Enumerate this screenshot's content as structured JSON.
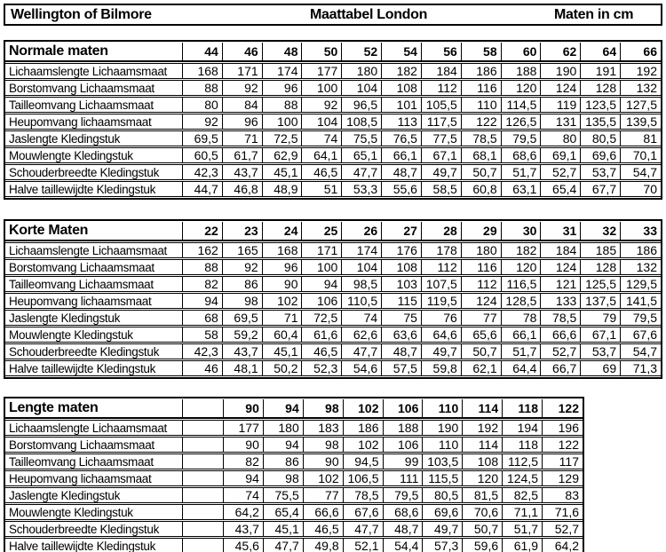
{
  "title_bar": {
    "left": "Wellington of Bilmore",
    "center": "Maattabel London",
    "right": "Maten in cm"
  },
  "colors": {
    "border": "#000000",
    "text": "#000000",
    "background": "#ffffff"
  },
  "tables": [
    {
      "title": "Normale maten",
      "lead_empty": false,
      "sizes": [
        "44",
        "46",
        "48",
        "50",
        "52",
        "54",
        "56",
        "58",
        "60",
        "62",
        "64",
        "66"
      ],
      "rows": [
        {
          "label": "Lichaamslengte Lichaamsmaat",
          "values": [
            "168",
            "171",
            "174",
            "177",
            "180",
            "182",
            "184",
            "186",
            "188",
            "190",
            "191",
            "192"
          ]
        },
        {
          "label": "Borstomvang Lichaamsmaat",
          "values": [
            "88",
            "92",
            "96",
            "100",
            "104",
            "108",
            "112",
            "116",
            "120",
            "124",
            "128",
            "132"
          ]
        },
        {
          "label": "Tailleomvang Lichaamsmaat",
          "values": [
            "80",
            "84",
            "88",
            "92",
            "96,5",
            "101",
            "105,5",
            "110",
            "114,5",
            "119",
            "123,5",
            "127,5"
          ]
        },
        {
          "label": "Heupomvang lichaamsmaat",
          "values": [
            "92",
            "96",
            "100",
            "104",
            "108,5",
            "113",
            "117,5",
            "122",
            "126,5",
            "131",
            "135,5",
            "139,5"
          ]
        },
        {
          "label": "Jaslengte Kledingstuk",
          "values": [
            "69,5",
            "71",
            "72,5",
            "74",
            "75,5",
            "76,5",
            "77,5",
            "78,5",
            "79,5",
            "80",
            "80,5",
            "81"
          ]
        },
        {
          "label": "Mouwlengte Kledingstuk",
          "values": [
            "60,5",
            "61,7",
            "62,9",
            "64,1",
            "65,1",
            "66,1",
            "67,1",
            "68,1",
            "68,6",
            "69,1",
            "69,6",
            "70,1"
          ]
        },
        {
          "label": "Schouderbreedte Kledingstuk",
          "values": [
            "42,3",
            "43,7",
            "45,1",
            "46,5",
            "47,7",
            "48,7",
            "49,7",
            "50,7",
            "51,7",
            "52,7",
            "53,7",
            "54,7"
          ]
        },
        {
          "label": "Halve taillewijdte Kledingstuk",
          "values": [
            "44,7",
            "46,8",
            "48,9",
            "51",
            "53,3",
            "55,6",
            "58,5",
            "60,8",
            "63,1",
            "65,4",
            "67,7",
            "70"
          ]
        }
      ]
    },
    {
      "title": "Korte Maten",
      "lead_empty": false,
      "sizes": [
        "22",
        "23",
        "24",
        "25",
        "26",
        "27",
        "28",
        "29",
        "30",
        "31",
        "32",
        "33"
      ],
      "rows": [
        {
          "label": "Lichaamslengte Lichaamsmaat",
          "values": [
            "162",
            "165",
            "168",
            "171",
            "174",
            "176",
            "178",
            "180",
            "182",
            "184",
            "185",
            "186"
          ]
        },
        {
          "label": "Borstomvang Lichaamsmaat",
          "values": [
            "88",
            "92",
            "96",
            "100",
            "104",
            "108",
            "112",
            "116",
            "120",
            "124",
            "128",
            "132"
          ]
        },
        {
          "label": "Tailleomvang Lichaamsmaat",
          "values": [
            "82",
            "86",
            "90",
            "94",
            "98,5",
            "103",
            "107,5",
            "112",
            "116,5",
            "121",
            "125,5",
            "129,5"
          ]
        },
        {
          "label": "Heupomvang lichaamsmaat",
          "values": [
            "94",
            "98",
            "102",
            "106",
            "110,5",
            "115",
            "119,5",
            "124",
            "128,5",
            "133",
            "137,5",
            "141,5"
          ]
        },
        {
          "label": "Jaslengte Kledingstuk",
          "values": [
            "68",
            "69,5",
            "71",
            "72,5",
            "74",
            "75",
            "76",
            "77",
            "78",
            "78,5",
            "79",
            "79,5"
          ]
        },
        {
          "label": "Mouwlengte Kledingstuk",
          "values": [
            "58",
            "59,2",
            "60,4",
            "61,6",
            "62,6",
            "63,6",
            "64,6",
            "65,6",
            "66,1",
            "66,6",
            "67,1",
            "67,6"
          ]
        },
        {
          "label": "Schouderbreedte Kledingstuk",
          "values": [
            "42,3",
            "43,7",
            "45,1",
            "46,5",
            "47,7",
            "48,7",
            "49,7",
            "50,7",
            "51,7",
            "52,7",
            "53,7",
            "54,7"
          ]
        },
        {
          "label": "Halve taillewijdte Kledingstuk",
          "values": [
            "46",
            "48,1",
            "50,2",
            "52,3",
            "54,6",
            "57,5",
            "59,8",
            "62,1",
            "64,4",
            "66,7",
            "69",
            "71,3"
          ]
        }
      ]
    },
    {
      "title": "Lengte maten",
      "lead_empty": true,
      "sizes": [
        "90",
        "94",
        "98",
        "102",
        "106",
        "110",
        "114",
        "118",
        "122"
      ],
      "rows": [
        {
          "label": "Lichaamslengte Lichaamsmaat",
          "values": [
            "177",
            "180",
            "183",
            "186",
            "188",
            "190",
            "192",
            "194",
            "196"
          ]
        },
        {
          "label": "Borstomvang Lichaamsmaat",
          "values": [
            "90",
            "94",
            "98",
            "102",
            "106",
            "110",
            "114",
            "118",
            "122"
          ]
        },
        {
          "label": "Tailleomvang Lichaamsmaat",
          "values": [
            "82",
            "86",
            "90",
            "94,5",
            "99",
            "103,5",
            "108",
            "112,5",
            "117"
          ]
        },
        {
          "label": "Heupomvang lichaamsmaat",
          "values": [
            "94",
            "98",
            "102",
            "106,5",
            "111",
            "115,5",
            "120",
            "124,5",
            "129"
          ]
        },
        {
          "label": "Jaslengte Kledingstuk",
          "values": [
            "74",
            "75,5",
            "77",
            "78,5",
            "79,5",
            "80,5",
            "81,5",
            "82,5",
            "83"
          ]
        },
        {
          "label": "Mouwlengte Kledingstuk",
          "values": [
            "64,2",
            "65,4",
            "66,6",
            "67,6",
            "68,6",
            "69,6",
            "70,6",
            "71,1",
            "71,6"
          ]
        },
        {
          "label": "Schouderbreedte Kledingstuk",
          "values": [
            "43,7",
            "45,1",
            "46,5",
            "47,7",
            "48,7",
            "49,7",
            "50,7",
            "51,7",
            "52,7"
          ]
        },
        {
          "label": "Halve taillewijdte Kledingstuk",
          "values": [
            "45,6",
            "47,7",
            "49,8",
            "52,1",
            "54,4",
            "57,3",
            "59,6",
            "61,9",
            "64,2"
          ]
        }
      ]
    }
  ]
}
